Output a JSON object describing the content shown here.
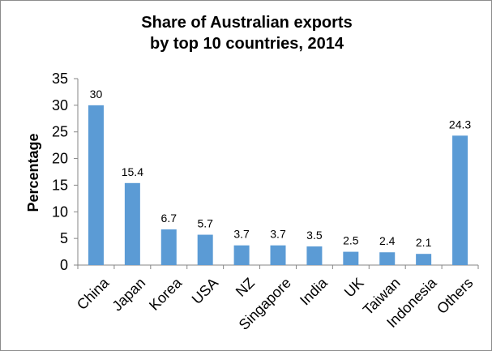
{
  "chart_data": {
    "type": "bar",
    "title_line1": "Share of Australian exports",
    "title_line2": "by top 10 countries, 2014",
    "xlabel": "",
    "ylabel": "Percentage",
    "ylim": [
      0,
      35
    ],
    "yticks": [
      0,
      5,
      10,
      15,
      20,
      25,
      30,
      35
    ],
    "categories": [
      "China",
      "Japan",
      "Korea",
      "USA",
      "NZ",
      "Singapore",
      "India",
      "UK",
      "Taiwan",
      "Indonesia",
      "Others"
    ],
    "values": [
      30,
      15.4,
      6.7,
      5.7,
      3.7,
      3.7,
      3.5,
      2.5,
      2.4,
      2.1,
      24.3
    ],
    "data_labels": [
      "30",
      "15.4",
      "6.7",
      "5.7",
      "3.7",
      "3.7",
      "3.5",
      "2.5",
      "2.4",
      "2.1",
      "24.3"
    ],
    "grid": false,
    "legend": "none",
    "bar_color": "#5b9bd5"
  }
}
